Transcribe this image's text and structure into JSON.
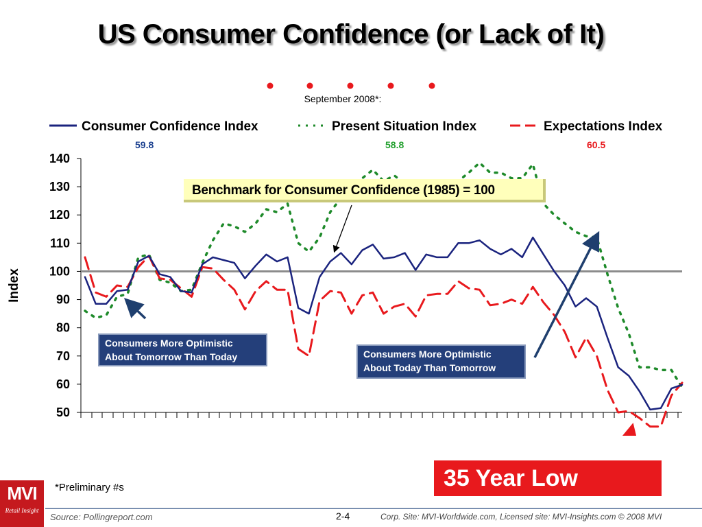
{
  "title": "US Consumer Confidence (or Lack of It)",
  "september_label": "September 2008*:",
  "colors": {
    "consumer_confidence": "#1a237e",
    "present_situation": "#1e8a2a",
    "expectations": "#e8191d",
    "benchmark_box": "#ffffbb",
    "callout_box": "#243f7a",
    "low_box": "#e8191d"
  },
  "legend": [
    {
      "name": "Consumer Confidence Index",
      "value": "59.8",
      "style": "solid",
      "color": "#1a237e"
    },
    {
      "name": "Present Situation Index",
      "value": "58.8",
      "style": "dotted",
      "color": "#1e8a2a"
    },
    {
      "name": "Expectations Index",
      "value": "60.5",
      "style": "dashed",
      "color": "#e8191d"
    }
  ],
  "benchmark_label": "Benchmark for Consumer Confidence (1985) = 100",
  "callout_tomorrow": [
    "Consumers More Optimistic",
    "About Tomorrow Than Today"
  ],
  "callout_today": [
    "Consumers More Optimistic",
    "About Today Than Tomorrow"
  ],
  "low_label": "35 Year Low",
  "footnote": "*Preliminary #s",
  "source": "Source: Pollingreport.com",
  "page_number": "2-4",
  "corp_line": "Corp. Site: MVI-Worldwide.com, Licensed site: MVI-Insights.com  © 2008 MVI",
  "logo": {
    "text": "MVI",
    "subtext": "Retail Insight"
  },
  "chart_data": {
    "type": "line",
    "ylabel": "Index",
    "xlabel": "",
    "ylim": [
      50,
      140
    ],
    "yticks": [
      50,
      60,
      70,
      80,
      90,
      100,
      110,
      120,
      130,
      140
    ],
    "benchmark": 100,
    "grid": false,
    "legend_position": "top",
    "series": [
      {
        "name": "Consumer Confidence Index",
        "style": "solid",
        "values": [
          98,
          88.5,
          88.5,
          93,
          93.5,
          103.5,
          105.5,
          99,
          98,
          93,
          92.5,
          102.5,
          105,
          104,
          103,
          97.5,
          102,
          106,
          103.5,
          105,
          87,
          85,
          98,
          103.5,
          106.5,
          102.5,
          107.5,
          109.5,
          104.5,
          105,
          106.5,
          100.5,
          106,
          105,
          105,
          110,
          110,
          111,
          108,
          106,
          108,
          105,
          112,
          106,
          100,
          95,
          87.5,
          90.5,
          87.5,
          76.5,
          66,
          63,
          57.5,
          51,
          51.5,
          58.5,
          59.8
        ]
      },
      {
        "name": "Present Situation Index",
        "style": "dotted",
        "values": [
          86,
          83.5,
          84.5,
          91,
          92,
          105,
          106,
          97,
          96,
          93,
          93.5,
          103,
          111,
          117,
          116,
          114,
          117,
          122,
          121,
          124,
          110,
          107,
          112,
          121,
          126,
          128,
          133,
          136,
          132,
          134,
          131,
          131,
          131,
          131,
          130,
          132,
          135,
          138.5,
          135,
          135,
          133,
          133,
          138,
          124,
          120,
          117,
          114,
          112.5,
          112,
          99,
          87,
          78,
          66,
          66,
          65,
          65,
          58.8
        ]
      },
      {
        "name": "Expectations Index",
        "style": "dashed",
        "values": [
          105,
          92.5,
          91,
          95,
          94.5,
          101.5,
          105.5,
          97.5,
          97,
          94,
          91,
          101.5,
          101,
          97,
          93.5,
          86.5,
          93,
          96.5,
          93.5,
          93.5,
          72.5,
          70,
          89.5,
          93,
          92.5,
          85,
          91.5,
          92.5,
          85,
          87.5,
          88.5,
          84,
          91.5,
          92,
          92,
          96.5,
          94,
          93.5,
          88,
          88.5,
          90,
          88.5,
          94.5,
          89,
          84.5,
          78.5,
          69.5,
          76.5,
          70,
          58,
          50,
          50.5,
          48,
          45,
          45,
          56,
          60.5
        ]
      }
    ]
  }
}
